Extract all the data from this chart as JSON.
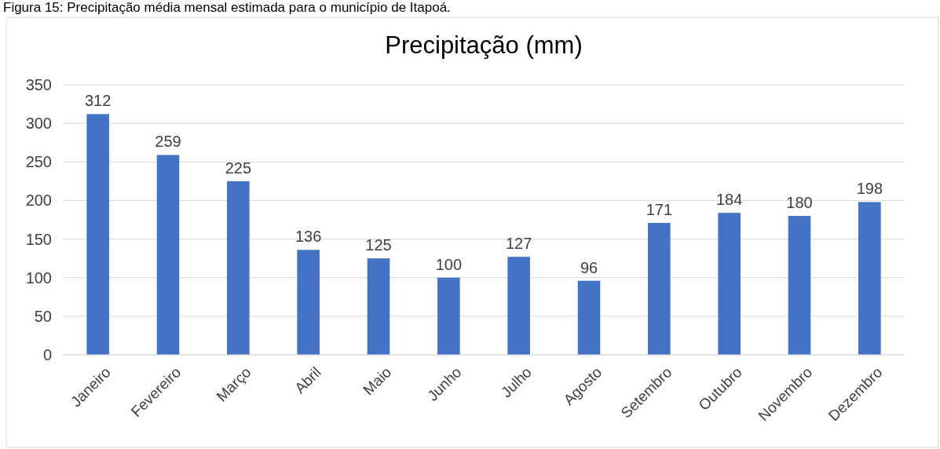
{
  "chart_data": {
    "type": "bar",
    "title": "Precipitação (mm)",
    "annotations": [
      "Figura 15: Precipitação média mensal estimada para o município de Itapoá."
    ],
    "categories": [
      "Janeiro",
      "Fevereiro",
      "Março",
      "Abril",
      "Maio",
      "Junho",
      "Julho",
      "Agosto",
      "Setembro",
      "Outubro",
      "Novembro",
      "Dezembro"
    ],
    "values": [
      312,
      259,
      225,
      136,
      125,
      100,
      127,
      96,
      171,
      184,
      180,
      198
    ],
    "color": "#4472c4",
    "ylim": [
      0,
      350
    ],
    "yticks": [
      0,
      50,
      100,
      150,
      200,
      250,
      300,
      350
    ],
    "grid": "y",
    "data_labels": true
  }
}
